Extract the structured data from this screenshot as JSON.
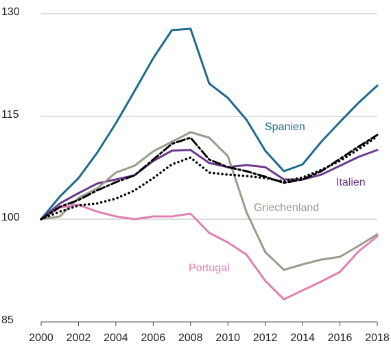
{
  "chart_data": {
    "type": "line",
    "x": [
      2000,
      2001,
      2002,
      2003,
      2004,
      2005,
      2006,
      2007,
      2008,
      2009,
      2010,
      2011,
      2012,
      2013,
      2014,
      2015,
      2016,
      2017,
      2018
    ],
    "xlim": [
      2000,
      2018
    ],
    "xticks": [
      2000,
      2002,
      2004,
      2006,
      2008,
      2010,
      2012,
      2014,
      2016,
      2018
    ],
    "ylim": [
      85,
      130
    ],
    "yticks": [
      85,
      100,
      115,
      130
    ],
    "grid": true,
    "series": [
      {
        "name": "Spanien",
        "color": "#1b6b8c",
        "values": [
          100,
          103.3,
          106,
          109.7,
          114,
          118.7,
          123.5,
          127.6,
          127.8,
          119.8,
          117.7,
          114.5,
          110,
          107,
          108,
          111.3,
          114.2,
          117,
          119.5
        ]
      },
      {
        "name": "Italien",
        "color": "#6a3a8e",
        "values": [
          100,
          102.3,
          103.8,
          105.2,
          105.8,
          106.4,
          108.5,
          110,
          110.1,
          108.2,
          107.6,
          107.9,
          107.6,
          105.8,
          105.8,
          106.5,
          107.8,
          109.1,
          110.1
        ]
      },
      {
        "name": "Griechenland",
        "color": "#9a9a8c",
        "values": [
          100,
          100.4,
          103.1,
          104.5,
          106.8,
          107.8,
          109.9,
          111.3,
          112.7,
          111.9,
          109.2,
          101,
          95.2,
          92.6,
          93.4,
          94.1,
          94.5,
          96.1,
          97.8
        ]
      },
      {
        "name": "Portugal",
        "color": "#e27fb2",
        "values": [
          100,
          101.7,
          102.1,
          101.1,
          100.4,
          100,
          100.4,
          100.4,
          100.8,
          98,
          96.6,
          94.8,
          91,
          88.3,
          89.6,
          90.9,
          92.3,
          95.3,
          97.5
        ]
      },
      {
        "color": "#000000",
        "style": "dashdot",
        "values": [
          100,
          101.8,
          102.8,
          104.2,
          105.4,
          106.4,
          108.7,
          111,
          111.9,
          108.7,
          107.6,
          107,
          106.2,
          105.3,
          105.8,
          107,
          108.8,
          110.6,
          112.3
        ]
      },
      {
        "color": "#000000",
        "style": "dotted",
        "values": [
          100,
          101.1,
          102,
          102.3,
          103,
          104.2,
          106,
          108,
          109,
          106.8,
          106.5,
          106.3,
          106,
          105.5,
          106.1,
          107.2,
          108.5,
          110.2,
          112.1
        ]
      }
    ]
  }
}
